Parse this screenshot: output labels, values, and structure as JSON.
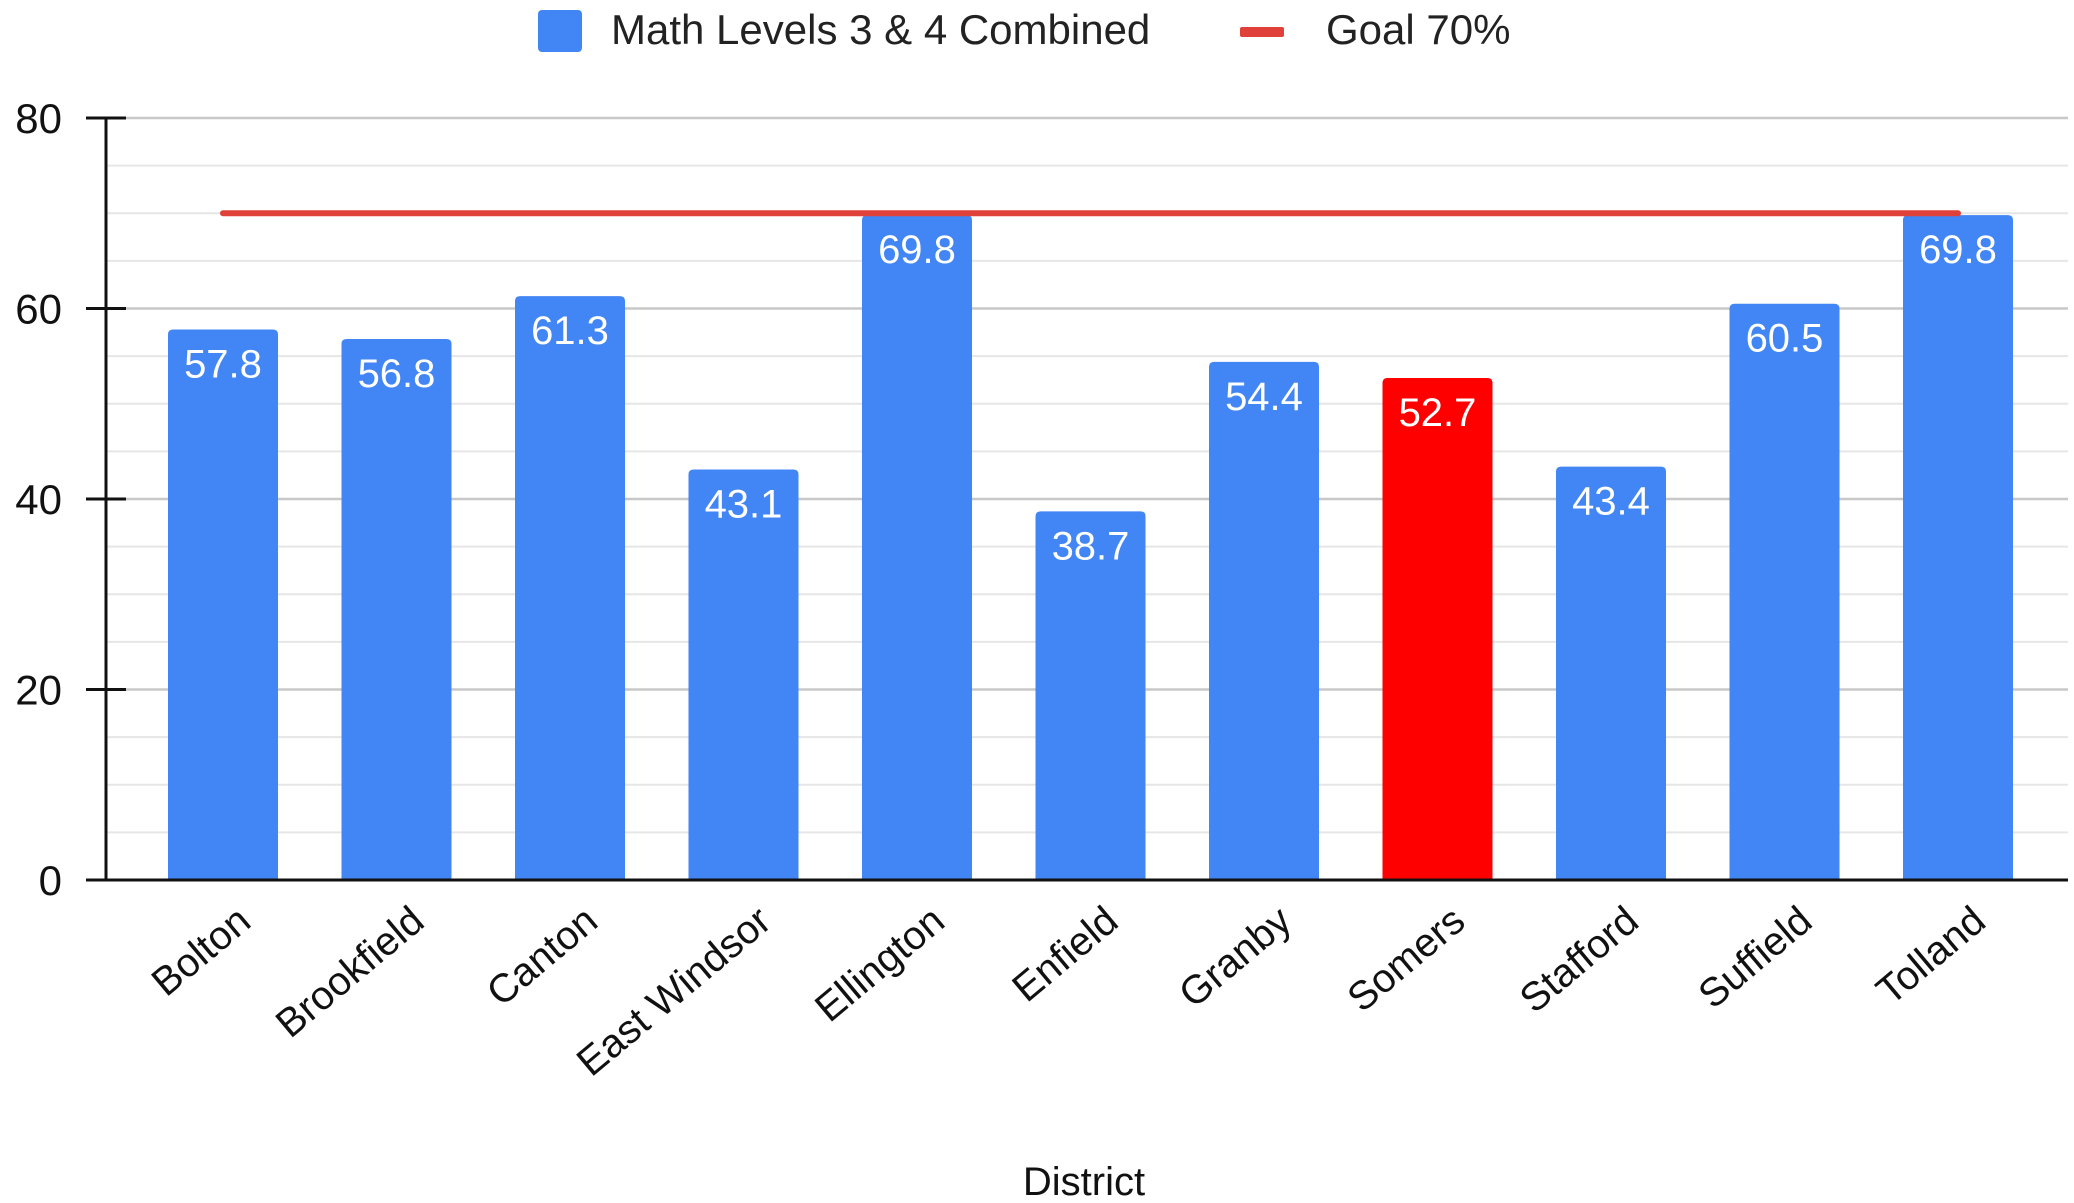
{
  "chart_data": {
    "type": "bar",
    "title": "",
    "xlabel": "District",
    "ylabel": "",
    "ylim": [
      0,
      80
    ],
    "yticks": [
      0,
      20,
      40,
      60,
      80
    ],
    "minor_grid_step": 5,
    "grid": true,
    "legend_position": "top-center",
    "categories": [
      "Bolton",
      "Brookfield",
      "Canton",
      "East Windsor",
      "Ellington",
      "Enfield",
      "Granby",
      "Somers",
      "Stafford",
      "Suffield",
      "Tolland"
    ],
    "series": [
      {
        "name": "Math Levels 3 & 4 Combined",
        "type": "bar",
        "color": "#4285f4",
        "highlight_color": "#ff0000",
        "highlight_category": "Somers",
        "values": [
          57.8,
          56.8,
          61.3,
          43.1,
          69.8,
          38.7,
          54.4,
          52.7,
          43.4,
          60.5,
          69.8
        ],
        "data_labels": [
          "57.8",
          "56.8",
          "61.3",
          "43.1",
          "69.8",
          "38.7",
          "54.4",
          "52.7",
          "43.4",
          "60.5",
          "69.8"
        ]
      },
      {
        "name": "Goal 70%",
        "type": "line",
        "color": "#e0403a",
        "value": 70
      }
    ]
  }
}
